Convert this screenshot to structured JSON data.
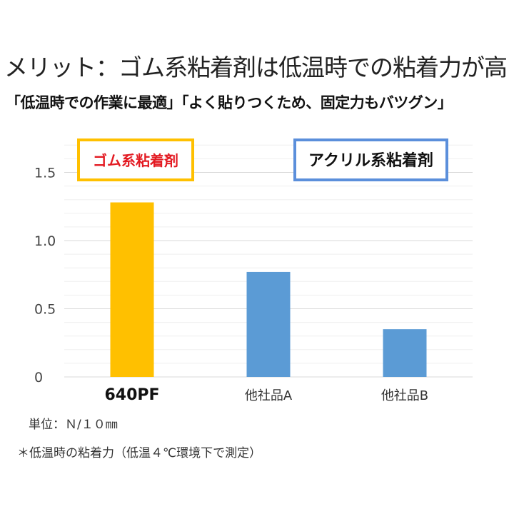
{
  "title": "メリット：ゴム系粘着剤は低温時での粘着力が高い",
  "subtitle": "「低温時での作業に最適」「よく貼りつくため、固定力もバツグン」",
  "notes": {
    "unit": "単位：Ｎ/１０㎜",
    "condition": "＊低温時の粘着力（低温４℃環境下で測定）"
  },
  "chart_data": {
    "type": "bar",
    "title": "",
    "xlabel": "",
    "ylabel": "",
    "categories": [
      "640PF",
      "他社品A",
      "他社品B"
    ],
    "values": [
      1.28,
      0.77,
      0.35
    ],
    "bar_colors": [
      "#FFC000",
      "#5B9BD5",
      "#5B9BD5"
    ],
    "ylim": [
      0,
      1.7
    ],
    "yticks": [
      0,
      0.5,
      1.0,
      1.5
    ],
    "ytick_labels": [
      "0",
      "0.5",
      "1.0",
      "1.5"
    ],
    "grid": true,
    "minor_grid_step": 0.1,
    "annotations": [
      {
        "text": "ゴム系粘着剤",
        "text_color": "#E31B23",
        "border_color": "#FFC000"
      },
      {
        "text": "アクリル系粘着剤",
        "text_color": "#111111",
        "border_color": "#5B8FDB"
      }
    ]
  }
}
